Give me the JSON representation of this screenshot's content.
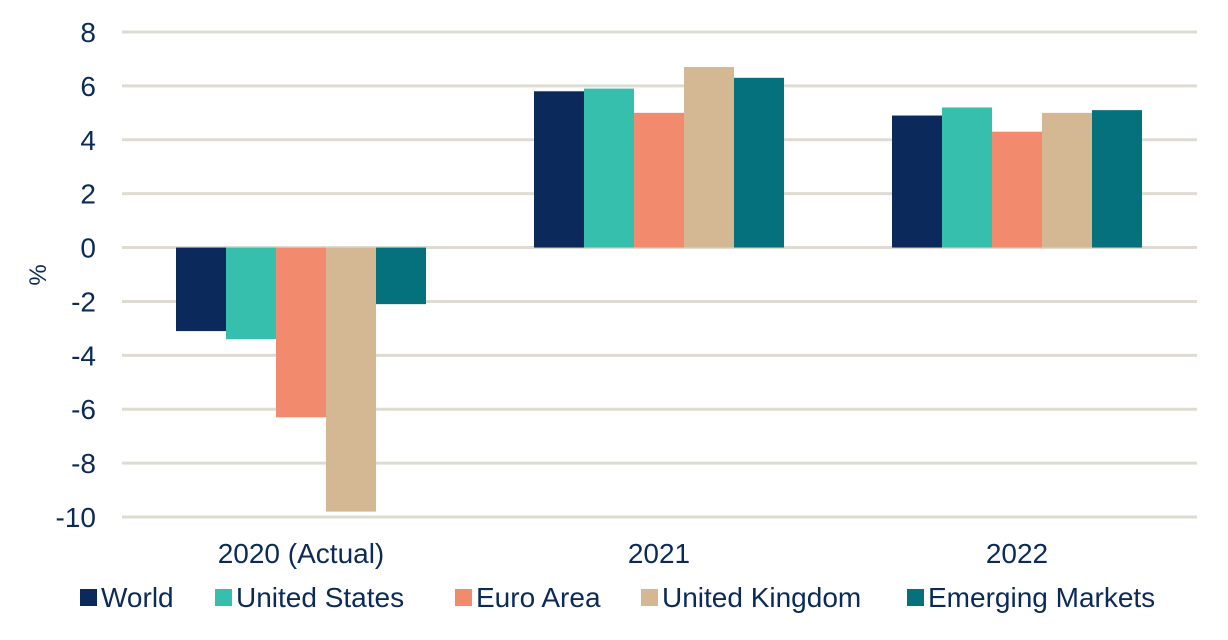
{
  "chart_data": {
    "type": "bar",
    "categories": [
      "2020 (Actual)",
      "2021",
      "2022"
    ],
    "series": [
      {
        "name": "World",
        "values": [
          -3.1,
          5.8,
          4.9
        ],
        "color": "#0b2a5b"
      },
      {
        "name": "United States",
        "values": [
          -3.4,
          5.9,
          5.2
        ],
        "color": "#35bfac"
      },
      {
        "name": "Euro Area",
        "values": [
          -6.3,
          5.0,
          4.3
        ],
        "color": "#f28b6d"
      },
      {
        "name": "United Kingdom",
        "values": [
          -9.8,
          6.7,
          5.0
        ],
        "color": "#d4b893"
      },
      {
        "name": "Emerging Markets",
        "values": [
          -2.1,
          6.3,
          5.1
        ],
        "color": "#04717c"
      }
    ],
    "ylabel": "%",
    "ylim": [
      -10,
      8
    ],
    "yticks": [
      8,
      6,
      4,
      2,
      0,
      -2,
      -4,
      -6,
      -8,
      -10
    ],
    "grid": true,
    "legend": "bottom"
  }
}
